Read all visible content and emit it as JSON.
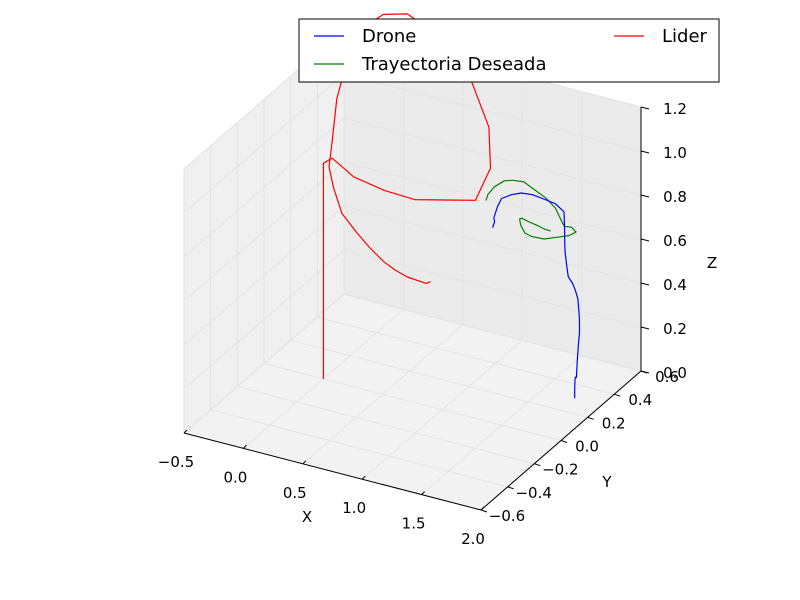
{
  "chart_data": {
    "type": "line3d",
    "title": "",
    "xlabel": "X",
    "ylabel": "Y",
    "zlabel": "Z",
    "xlim": [
      -0.5,
      2.0
    ],
    "ylim": [
      -0.6,
      0.6
    ],
    "zlim": [
      0.0,
      1.2
    ],
    "xticks": [
      "−0.5",
      "0.0",
      "0.5",
      "1.0",
      "1.5",
      "2.0"
    ],
    "yticks": [
      "−0.6",
      "−0.4",
      "−0.2",
      "0.0",
      "0.2",
      "0.4",
      "0.6"
    ],
    "zticks": [
      "0.0",
      "0.2",
      "0.4",
      "0.6",
      "0.8",
      "1.0",
      "1.2"
    ],
    "grid": true,
    "legend": {
      "position": "top-right",
      "columns": 2,
      "entries": [
        {
          "label": "Drone",
          "color": "#0000ff"
        },
        {
          "label": "Lider",
          "color": "#ff0000"
        },
        {
          "label": "Trayectoria Deseada",
          "color": "#008000"
        }
      ]
    },
    "series": [
      {
        "name": "Lider",
        "color": "#ff0000",
        "x": [
          0.0,
          0.0,
          0.0,
          0.0,
          0.05,
          0.2,
          0.4,
          0.6,
          0.8,
          1.0,
          1.07,
          1.0,
          0.8,
          0.5,
          0.2,
          0.0,
          -0.15,
          -0.25,
          -0.28,
          -0.24,
          -0.2,
          -0.05,
          0.1,
          0.3,
          0.5,
          0.7,
          0.85,
          1.0,
          1.2,
          1.25
        ],
        "y": [
          0.0,
          0.0,
          0.0,
          0.0,
          0.02,
          0.05,
          0.1,
          0.15,
          0.2,
          0.25,
          0.3,
          0.35,
          0.4,
          0.43,
          0.45,
          0.45,
          0.43,
          0.4,
          0.35,
          0.28,
          0.22,
          0.12,
          0.05,
          -0.02,
          -0.1,
          -0.17,
          -0.22,
          -0.26,
          -0.3,
          -0.31
        ],
        "z": [
          0.0,
          0.3,
          0.6,
          0.98,
          1.0,
          0.92,
          0.86,
          0.82,
          0.82,
          0.82,
          0.95,
          1.1,
          1.25,
          1.4,
          1.45,
          1.42,
          1.35,
          1.2,
          1.05,
          0.9,
          0.82,
          0.8,
          0.74,
          0.72,
          0.72,
          0.72,
          0.73,
          0.74,
          0.76,
          0.78
        ]
      },
      {
        "name": "Trayectoria Deseada",
        "color": "#008000",
        "x": [
          1.2,
          1.25,
          1.35,
          1.5,
          1.65,
          1.8,
          1.95,
          2.1,
          2.2,
          2.25,
          2.23,
          2.2,
          2.18,
          2.15,
          2.1,
          2.0,
          1.85,
          1.7,
          1.55,
          1.45,
          1.38,
          1.36,
          1.4,
          1.5,
          1.6,
          1.7,
          1.8,
          1.88
        ],
        "y": [
          0.15,
          0.12,
          0.08,
          0.02,
          -0.05,
          -0.1,
          -0.16,
          -0.2,
          -0.22,
          -0.22,
          -0.18,
          -0.1,
          -0.05,
          -0.02,
          0.02,
          0.06,
          0.1,
          0.14,
          0.18,
          0.22,
          0.25,
          0.26,
          0.24,
          0.2,
          0.15,
          0.1,
          0.06,
          0.03
        ],
        "z": [
          0.9,
          0.95,
          1.02,
          1.1,
          1.16,
          1.2,
          1.22,
          1.22,
          1.2,
          1.15,
          1.1,
          1.05,
          1.0,
          0.98,
          0.95,
          0.9,
          0.85,
          0.8,
          0.77,
          0.75,
          0.76,
          0.78,
          0.8,
          0.82,
          0.85,
          0.88,
          0.9,
          0.92
        ]
      },
      {
        "name": "Drone",
        "color": "#0000ff",
        "x": [
          1.2,
          1.25,
          1.3,
          1.4,
          1.5,
          1.65,
          1.8,
          1.95,
          2.1,
          2.2,
          2.25,
          2.22,
          2.2,
          2.18,
          2.16,
          2.14,
          2.13,
          2.12,
          2.12,
          2.11,
          2.1,
          2.08,
          2.06,
          2.05,
          2.04,
          2.03,
          2.02,
          2.02
        ],
        "y": [
          0.2,
          0.17,
          0.12,
          0.06,
          0.0,
          -0.06,
          -0.12,
          -0.17,
          -0.21,
          -0.22,
          -0.2,
          -0.17,
          -0.15,
          -0.13,
          -0.1,
          -0.07,
          -0.03,
          0.0,
          0.02,
          0.04,
          0.05,
          0.06,
          0.07,
          0.075,
          0.08,
          0.08,
          0.085,
          0.085
        ],
        "z": [
          0.75,
          0.8,
          0.85,
          0.95,
          1.03,
          1.1,
          1.16,
          1.2,
          1.22,
          1.22,
          1.18,
          1.1,
          1.0,
          0.95,
          0.87,
          0.8,
          0.75,
          0.7,
          0.65,
          0.55,
          0.48,
          0.42,
          0.35,
          0.3,
          0.25,
          0.25,
          0.2,
          0.15
        ]
      }
    ]
  }
}
